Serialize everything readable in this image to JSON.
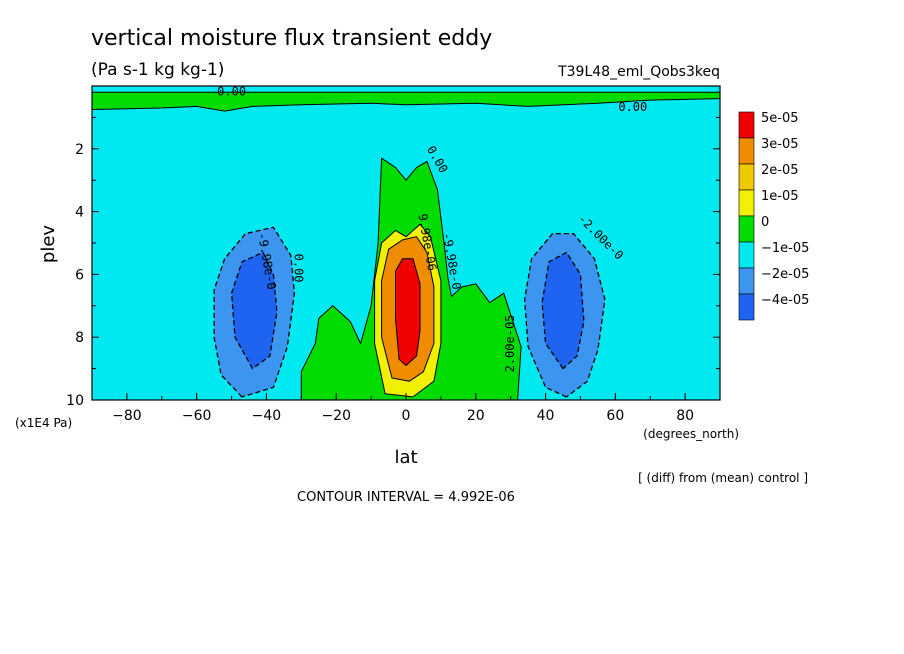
{
  "chart_data": {
    "type": "heatmap",
    "title": "vertical moisture flux transient eddy",
    "units": "(Pa s-1 kg kg-1)",
    "run_label": "T39L48_eml_Qobs3keq",
    "xlabel": "lat",
    "xunits": "(degrees_north)",
    "ylabel": "plev",
    "yunits": "(x1E4 Pa)",
    "xlim": [
      -90,
      90
    ],
    "ylim": [
      0,
      10
    ],
    "y_inverted": true,
    "xticks": [
      -80,
      -60,
      -40,
      -20,
      0,
      20,
      40,
      60,
      80
    ],
    "yticks": [
      2,
      4,
      6,
      8,
      10
    ],
    "legend": {
      "placement": "right",
      "labels": [
        "5e-05",
        "3e-05",
        "2e-05",
        "1e-05",
        "0",
        "-1e-05",
        "-2e-05",
        "-4e-05"
      ],
      "colors": [
        "#f00000",
        "#f08c00",
        "#f0c800",
        "#f0f000",
        "#00dc00",
        "#00e8f0",
        "#3c96f0",
        "#1e64f0"
      ]
    },
    "contour_labels": [
      "0.00",
      "0.00",
      "0.00",
      "0.00",
      "2.00e-05",
      "9.98e-06",
      "-9.98e-0",
      "-9.98e-0",
      "-2.00e-0"
    ],
    "note": "[ (diff) from (mean) control ]",
    "contour_interval": "CONTOUR INTERVAL = 4.992E-06",
    "regions": [
      {
        "name": "upper-positive-layer",
        "level": 0,
        "polygon": [
          [
            -90,
            0.2
          ],
          [
            -90,
            0.75
          ],
          [
            -70,
            0.7
          ],
          [
            -60,
            0.65
          ],
          [
            -52,
            0.8
          ],
          [
            -44,
            0.65
          ],
          [
            -30,
            0.6
          ],
          [
            -10,
            0.55
          ],
          [
            0,
            0.6
          ],
          [
            20,
            0.55
          ],
          [
            35,
            0.65
          ],
          [
            55,
            0.55
          ],
          [
            70,
            0.45
          ],
          [
            90,
            0.4
          ],
          [
            90,
            0.2
          ]
        ]
      },
      {
        "name": "central-positive-zone",
        "level": 0,
        "polygon": [
          [
            -30,
            10
          ],
          [
            -30,
            9.1
          ],
          [
            -26,
            8.2
          ],
          [
            -25,
            7.4
          ],
          [
            -21,
            7.0
          ],
          [
            -16,
            7.5
          ],
          [
            -13,
            8.2
          ],
          [
            -10,
            7.0
          ],
          [
            -8,
            5.0
          ],
          [
            -7,
            2.3
          ],
          [
            -3,
            2.6
          ],
          [
            0,
            3.0
          ],
          [
            3,
            2.6
          ],
          [
            6,
            2.4
          ],
          [
            9,
            3.3
          ],
          [
            11,
            5.1
          ],
          [
            12,
            6.1
          ],
          [
            13,
            6.7
          ],
          [
            16,
            6.4
          ],
          [
            20,
            6.3
          ],
          [
            24,
            6.9
          ],
          [
            28,
            6.6
          ],
          [
            33,
            8.3
          ],
          [
            32,
            10
          ]
        ]
      },
      {
        "name": "left-negative-lobe-1",
        "level": -1,
        "polygon": [
          [
            -47,
            9.9
          ],
          [
            -53,
            9.2
          ],
          [
            -55,
            8.0
          ],
          [
            -55,
            6.5
          ],
          [
            -52,
            5.5
          ],
          [
            -46,
            4.7
          ],
          [
            -38,
            4.5
          ],
          [
            -33,
            5.4
          ],
          [
            -32,
            6.6
          ],
          [
            -34,
            8.3
          ],
          [
            -38,
            9.6
          ]
        ]
      },
      {
        "name": "left-negative-lobe-2",
        "level": -2,
        "polygon": [
          [
            -44,
            9.0
          ],
          [
            -49,
            8.0
          ],
          [
            -50,
            6.6
          ],
          [
            -47,
            5.6
          ],
          [
            -41,
            5.3
          ],
          [
            -38,
            6.0
          ],
          [
            -37,
            7.2
          ],
          [
            -39,
            8.6
          ]
        ]
      },
      {
        "name": "right-negative-lobe-1",
        "level": -1,
        "polygon": [
          [
            46,
            9.9
          ],
          [
            40,
            9.6
          ],
          [
            35,
            8.3
          ],
          [
            34,
            6.8
          ],
          [
            36,
            5.5
          ],
          [
            42,
            4.7
          ],
          [
            48,
            4.7
          ],
          [
            54,
            5.5
          ],
          [
            57,
            6.8
          ],
          [
            55,
            8.4
          ],
          [
            52,
            9.4
          ]
        ]
      },
      {
        "name": "right-negative-lobe-2",
        "level": -2,
        "polygon": [
          [
            45,
            9.0
          ],
          [
            40,
            8.2
          ],
          [
            39,
            6.9
          ],
          [
            41,
            5.6
          ],
          [
            46,
            5.3
          ],
          [
            50,
            6.0
          ],
          [
            51,
            7.5
          ],
          [
            49,
            8.6
          ]
        ]
      },
      {
        "name": "central-level-1",
        "level": 1,
        "polygon": [
          [
            -6,
            9.8
          ],
          [
            -9,
            8.2
          ],
          [
            -9,
            6.2
          ],
          [
            -7,
            5.0
          ],
          [
            -3,
            4.6
          ],
          [
            0,
            4.8
          ],
          [
            4,
            4.4
          ],
          [
            7,
            4.8
          ],
          [
            10,
            6.2
          ],
          [
            10,
            8.2
          ],
          [
            8,
            9.4
          ],
          [
            2,
            9.9
          ]
        ]
      },
      {
        "name": "central-level-2",
        "level": 2,
        "polygon": [
          [
            -4,
            9.3
          ],
          [
            -7,
            8.0
          ],
          [
            -7,
            6.2
          ],
          [
            -5,
            5.2
          ],
          [
            -1,
            4.9
          ],
          [
            3,
            4.8
          ],
          [
            6,
            5.3
          ],
          [
            8,
            6.4
          ],
          [
            8,
            8.2
          ],
          [
            5,
            9.1
          ],
          [
            1,
            9.4
          ]
        ]
      },
      {
        "name": "central-level-3",
        "level": 3,
        "polygon": [
          [
            -2,
            8.7
          ],
          [
            -3,
            7.4
          ],
          [
            -3,
            5.9
          ],
          [
            -1,
            5.5
          ],
          [
            2,
            5.5
          ],
          [
            4,
            6.3
          ],
          [
            4,
            7.8
          ],
          [
            3,
            8.6
          ],
          [
            0,
            8.9
          ]
        ]
      }
    ]
  }
}
